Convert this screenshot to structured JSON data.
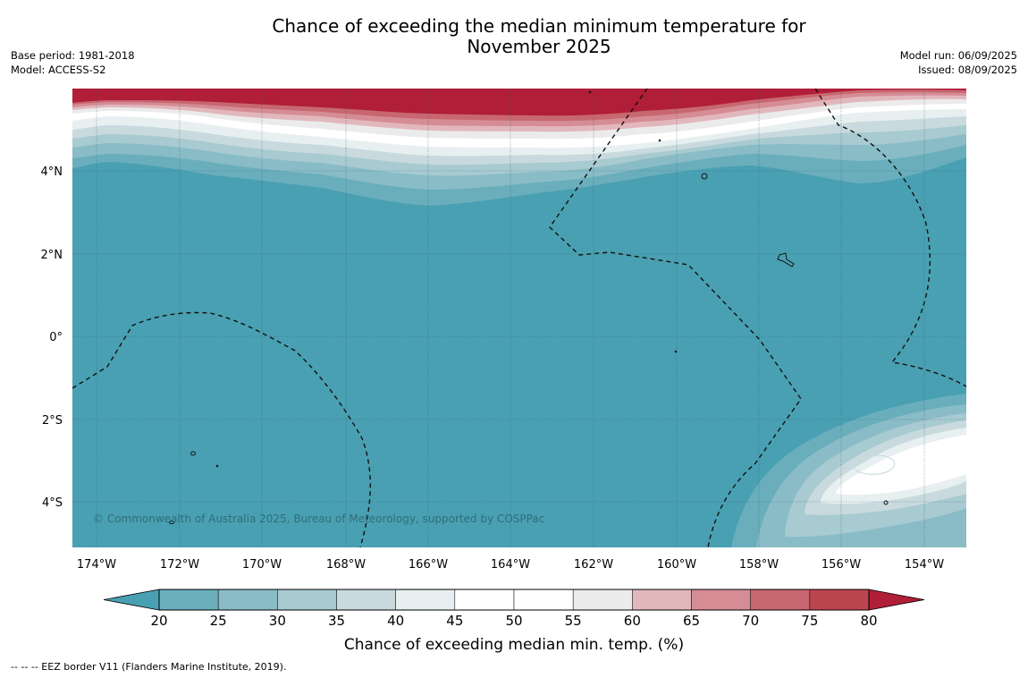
{
  "title": {
    "line1": "Chance of exceeding the median minimum temperature for",
    "line2": "November 2025"
  },
  "meta": {
    "base_period": "Base period: 1981-2018",
    "model": "Model: ACCESS-S2",
    "model_run": "Model run: 06/09/2025",
    "issued": "Issued: 08/09/2025"
  },
  "map": {
    "lat_labels": [
      "4°N",
      "2°N",
      "0°",
      "2°S",
      "4°S"
    ],
    "lon_labels": [
      "174°W",
      "172°W",
      "170°W",
      "168°W",
      "166°W",
      "164°W",
      "162°W",
      "160°W",
      "158°W",
      "156°W",
      "154°W"
    ],
    "copyright": "© Commonwealth of Australia 2025, Bureau of Meteorology, supported by COSPPac",
    "base_color": "#49a0b2"
  },
  "colorbar": {
    "ticks": [
      "20",
      "25",
      "30",
      "35",
      "40",
      "45",
      "50",
      "55",
      "60",
      "65",
      "70",
      "75",
      "80"
    ],
    "colors": [
      "#49a0b2",
      "#6aaebc",
      "#89bcc6",
      "#a8cad1",
      "#c8dadd",
      "#e8eff1",
      "#ffffff",
      "#ffffff",
      "#ebebeb",
      "#e2b7bc",
      "#d58c95",
      "#c8676f",
      "#bb4650",
      "#b01e38"
    ],
    "label": "Chance of exceeding median min. temp. (%)"
  },
  "footnote": "--  --  -- EEZ border V11 (Flanders Marine Institute, 2019)."
}
